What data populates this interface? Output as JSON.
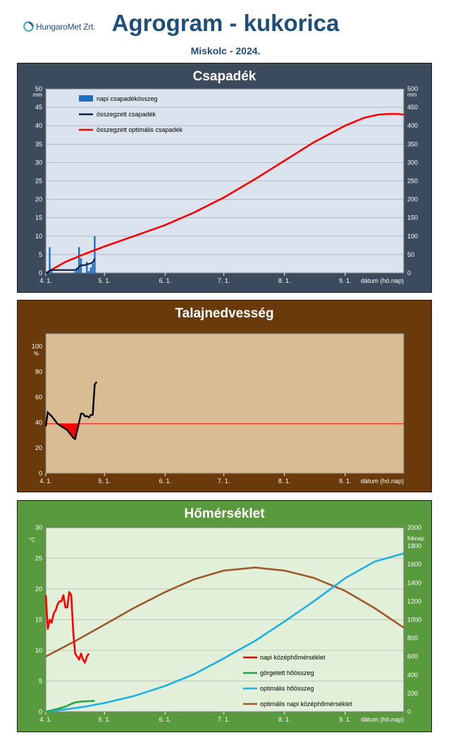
{
  "header": {
    "logo_text": "HungaroMet Zrt.",
    "title": "Agrogram - kukorica",
    "subtitle": "Miskolc  - 2024."
  },
  "x_axis": {
    "tick_labels": [
      "4. 1.",
      "5. 1.",
      "6. 1.",
      "7. 1.",
      "8. 1.",
      "9. 1."
    ],
    "tick_days": [
      0,
      30,
      61,
      91,
      122,
      153
    ],
    "end_day": 183,
    "label": "dátum (hó.nap)"
  },
  "colors": {
    "precip_bg": "#3b4a5c",
    "soil_bg": "#6a3a0a",
    "temp_bg": "#599a3e",
    "precip_plot": "#dbe3ee",
    "soil_plot": "#d9bc94",
    "temp_plot": "#e2efd9"
  },
  "chart_data": [
    {
      "type": "bar",
      "title": "Csapadék",
      "ylabel_left": "mm",
      "ylabel_right": "mm",
      "ylim_left": [
        0,
        50
      ],
      "ylim_right": [
        0,
        500
      ],
      "yticks_left": [
        "0",
        "5",
        "10",
        "15",
        "20",
        "25",
        "30",
        "35",
        "40",
        "45",
        "50"
      ],
      "yticks_right": [
        "0",
        "50",
        "100",
        "150",
        "200",
        "250",
        "300",
        "350",
        "400",
        "450",
        "500"
      ],
      "legend": [
        "napi csapadékösszeg",
        "összegzett csapadék",
        "összegzett optimális csapadék"
      ],
      "legend_position": "top-left",
      "grid": true,
      "series": [
        {
          "name": "napi csapadékösszeg",
          "axis": "left",
          "color": "#1f6fbf",
          "points": [
            [
              2,
              7.0
            ],
            [
              3,
              1.0
            ],
            [
              15,
              0.5
            ],
            [
              16,
              1.5
            ],
            [
              17,
              7.0
            ],
            [
              18,
              4.0
            ],
            [
              21,
              3.0
            ],
            [
              22,
              0.5
            ],
            [
              23,
              1.5
            ],
            [
              24,
              2.5
            ],
            [
              25,
              10.0
            ]
          ]
        },
        {
          "name": "összegzett csapadék",
          "axis": "right",
          "color": "#0d1f4a",
          "points": [
            [
              0,
              0
            ],
            [
              1,
              0
            ],
            [
              2,
              7
            ],
            [
              3,
              8
            ],
            [
              14,
              8
            ],
            [
              15,
              8.5
            ],
            [
              16,
              10
            ],
            [
              17,
              17
            ],
            [
              18,
              21
            ],
            [
              20,
              21
            ],
            [
              21,
              24
            ],
            [
              22,
              24.5
            ],
            [
              23,
              26
            ],
            [
              24,
              28.5
            ],
            [
              25,
              38.5
            ]
          ]
        },
        {
          "name": "összegzett optimális csapadék",
          "axis": "right",
          "color": "#ff0000",
          "points": [
            [
              0,
              0
            ],
            [
              10,
              30
            ],
            [
              20,
              52
            ],
            [
              30,
              72
            ],
            [
              45,
              100
            ],
            [
              61,
              130
            ],
            [
              76,
              165
            ],
            [
              91,
              205
            ],
            [
              107,
              255
            ],
            [
              122,
              305
            ],
            [
              137,
              355
            ],
            [
              153,
              400
            ],
            [
              163,
              422
            ],
            [
              170,
              430
            ],
            [
              175,
              432
            ],
            [
              180,
              432
            ],
            [
              183,
              430
            ]
          ]
        }
      ]
    },
    {
      "type": "line",
      "title": "Talajnedvesség",
      "ylabel": "%",
      "ylim": [
        0,
        110
      ],
      "yticks": [
        "0",
        "20",
        "40",
        "60",
        "80",
        "100"
      ],
      "reference_value": 39,
      "grid": false,
      "series": [
        {
          "name": "",
          "color": "#000000",
          "points": [
            [
              0,
              37
            ],
            [
              1,
              48
            ],
            [
              3,
              45
            ],
            [
              4,
              43
            ],
            [
              6,
              39
            ],
            [
              9,
              36
            ],
            [
              11,
              34
            ],
            [
              13,
              30
            ],
            [
              14,
              28
            ],
            [
              15,
              27
            ],
            [
              17,
              40
            ],
            [
              18,
              47
            ],
            [
              19,
              47
            ],
            [
              20,
              45
            ],
            [
              21,
              45
            ],
            [
              22,
              44
            ],
            [
              23,
              46
            ],
            [
              24,
              46
            ],
            [
              25,
              70
            ],
            [
              26,
              72
            ]
          ]
        }
      ]
    },
    {
      "type": "line",
      "title": "Hőmérséklet",
      "ylabel_left": "°C",
      "ylabel_right": "foknap",
      "ylim_left": [
        0,
        30
      ],
      "ylim_right": [
        0,
        2000
      ],
      "yticks_left": [
        "0",
        "5",
        "10",
        "15",
        "20",
        "25",
        "30"
      ],
      "yticks_right": [
        "0",
        "200",
        "400",
        "600",
        "800",
        "1000",
        "1200",
        "1400",
        "1600",
        "1800",
        "2000"
      ],
      "legend": [
        "napi középhőmérséklet",
        "görgetett hőösszeg",
        "optimális hőösszeg",
        "optimális napi középhőmérséklet"
      ],
      "legend_position": "bottom-right",
      "grid": true,
      "series": [
        {
          "name": "napi középhőmérséklet",
          "axis": "left",
          "color": "#ff0000",
          "points": [
            [
              0,
              19
            ],
            [
              1,
              13.5
            ],
            [
              2,
              15
            ],
            [
              3,
              14.5
            ],
            [
              4,
              16
            ],
            [
              5,
              16.5
            ],
            [
              6,
              17.5
            ],
            [
              7,
              18
            ],
            [
              8,
              18
            ],
            [
              9,
              19
            ],
            [
              10,
              17
            ],
            [
              11,
              17
            ],
            [
              12,
              19.5
            ],
            [
              13,
              19
            ],
            [
              14,
              13
            ],
            [
              15,
              9.5
            ],
            [
              16,
              9
            ],
            [
              17,
              8.5
            ],
            [
              18,
              9.5
            ],
            [
              19,
              8.5
            ],
            [
              20,
              8
            ],
            [
              21,
              9
            ],
            [
              22,
              9.5
            ]
          ]
        },
        {
          "name": "görgetett hőösszeg",
          "axis": "right",
          "color": "#22a84a",
          "points": [
            [
              0,
              0
            ],
            [
              5,
              25
            ],
            [
              10,
              55
            ],
            [
              13,
              85
            ],
            [
              15,
              100
            ],
            [
              18,
              110
            ],
            [
              22,
              115
            ],
            [
              25,
              118
            ]
          ]
        },
        {
          "name": "optimális hőösszeg",
          "axis": "right",
          "color": "#1fb0e8",
          "points": [
            [
              0,
              0
            ],
            [
              10,
              25
            ],
            [
              20,
              55
            ],
            [
              30,
              95
            ],
            [
              45,
              170
            ],
            [
              61,
              280
            ],
            [
              76,
              410
            ],
            [
              91,
              580
            ],
            [
              107,
              770
            ],
            [
              122,
              980
            ],
            [
              137,
              1200
            ],
            [
              153,
              1450
            ],
            [
              168,
              1630
            ],
            [
              183,
              1720
            ]
          ]
        },
        {
          "name": "optimális napi középhőmérséklet",
          "axis": "left",
          "color": "#9c5a2c",
          "points": [
            [
              0,
              9
            ],
            [
              15,
              11.5
            ],
            [
              30,
              14.2
            ],
            [
              45,
              16.9
            ],
            [
              61,
              19.5
            ],
            [
              76,
              21.6
            ],
            [
              91,
              23
            ],
            [
              107,
              23.5
            ],
            [
              122,
              23
            ],
            [
              137,
              21.8
            ],
            [
              153,
              19.7
            ],
            [
              168,
              16.9
            ],
            [
              183,
              13.7
            ]
          ]
        }
      ]
    }
  ]
}
